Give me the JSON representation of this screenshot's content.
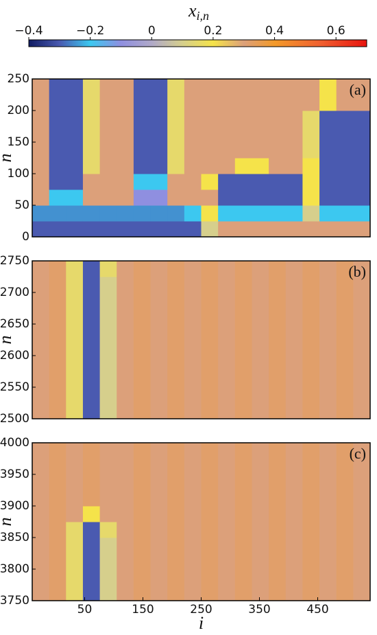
{
  "chart_data": [
    {
      "type": "heatmap",
      "label": "(a)",
      "ylabel": "n",
      "xlim": [
        -40,
        540
      ],
      "ylim": [
        0,
        250
      ],
      "yticks": [
        0,
        50,
        100,
        150,
        200,
        250
      ],
      "z": [
        [
          -0.3,
          -0.3,
          -0.3,
          -0.3,
          -0.3,
          -0.3,
          -0.3,
          -0.3,
          -0.3,
          -0.3,
          0.1,
          0.3,
          0.3,
          0.3,
          0.3,
          0.3,
          0.3,
          0.3,
          0.3,
          0.3
        ],
        [
          -0.25,
          -0.25,
          -0.25,
          -0.25,
          -0.25,
          -0.25,
          -0.25,
          -0.25,
          -0.25,
          -0.2,
          0.2,
          -0.2,
          -0.2,
          -0.2,
          -0.2,
          -0.2,
          0.1,
          -0.2,
          -0.2,
          -0.2
        ],
        [
          0.3,
          -0.2,
          -0.2,
          0.3,
          0.3,
          0.3,
          -0.1,
          -0.1,
          0.3,
          0.3,
          0.3,
          -0.3,
          -0.3,
          -0.3,
          -0.3,
          -0.3,
          0.2,
          -0.3,
          -0.3,
          -0.3
        ],
        [
          0.3,
          -0.3,
          -0.3,
          0.3,
          0.3,
          0.3,
          -0.2,
          -0.2,
          0.3,
          0.3,
          0.2,
          -0.3,
          -0.3,
          -0.3,
          -0.3,
          -0.3,
          0.2,
          -0.3,
          -0.3,
          -0.3
        ],
        [
          0.3,
          -0.3,
          -0.3,
          0.15,
          0.3,
          0.3,
          -0.3,
          -0.3,
          0.15,
          0.3,
          0.3,
          0.3,
          0.2,
          0.2,
          0.3,
          0.3,
          0.2,
          -0.3,
          -0.3,
          -0.3
        ],
        [
          0.3,
          -0.3,
          -0.3,
          0.15,
          0.3,
          0.3,
          -0.3,
          -0.3,
          0.15,
          0.3,
          0.3,
          0.3,
          0.3,
          0.3,
          0.3,
          0.3,
          0.15,
          -0.3,
          -0.3,
          -0.3
        ],
        [
          0.3,
          -0.3,
          -0.3,
          0.15,
          0.3,
          0.3,
          -0.3,
          -0.3,
          0.15,
          0.3,
          0.3,
          0.3,
          0.3,
          0.3,
          0.3,
          0.3,
          0.15,
          -0.3,
          -0.3,
          -0.3
        ],
        [
          0.3,
          -0.3,
          -0.3,
          0.15,
          0.3,
          0.3,
          -0.3,
          -0.3,
          0.15,
          0.3,
          0.3,
          0.3,
          0.3,
          0.3,
          0.3,
          0.3,
          0.15,
          -0.3,
          -0.3,
          -0.3
        ],
        [
          0.3,
          -0.3,
          -0.3,
          0.15,
          0.3,
          0.3,
          -0.3,
          -0.3,
          0.15,
          0.3,
          0.3,
          0.3,
          0.3,
          0.3,
          0.3,
          0.3,
          0.3,
          0.2,
          0.3,
          0.3
        ],
        [
          0.3,
          -0.3,
          -0.3,
          0.15,
          0.3,
          0.3,
          -0.3,
          -0.3,
          0.15,
          0.3,
          0.3,
          0.3,
          0.3,
          0.3,
          0.3,
          0.3,
          0.3,
          0.2,
          0.3,
          0.3
        ]
      ]
    },
    {
      "type": "heatmap",
      "label": "(b)",
      "ylabel": "n",
      "xlim": [
        -40,
        540
      ],
      "ylim": [
        2500,
        2750
      ],
      "yticks": [
        2500,
        2550,
        2600,
        2650,
        2700,
        2750
      ],
      "z": [
        [
          0.3,
          0.32,
          0.15,
          -0.3,
          0.1,
          0.3,
          0.32,
          0.3,
          0.32,
          0.3,
          0.32,
          0.3,
          0.32,
          0.3,
          0.32,
          0.3,
          0.32,
          0.3,
          0.32,
          0.3
        ],
        [
          0.3,
          0.32,
          0.15,
          -0.3,
          0.1,
          0.3,
          0.32,
          0.3,
          0.32,
          0.3,
          0.32,
          0.3,
          0.32,
          0.3,
          0.32,
          0.3,
          0.32,
          0.3,
          0.32,
          0.3
        ],
        [
          0.3,
          0.32,
          0.15,
          -0.3,
          0.1,
          0.3,
          0.32,
          0.3,
          0.32,
          0.3,
          0.32,
          0.3,
          0.32,
          0.3,
          0.32,
          0.3,
          0.32,
          0.3,
          0.32,
          0.3
        ],
        [
          0.3,
          0.32,
          0.15,
          -0.3,
          0.1,
          0.3,
          0.32,
          0.3,
          0.32,
          0.3,
          0.32,
          0.3,
          0.32,
          0.3,
          0.32,
          0.3,
          0.32,
          0.3,
          0.32,
          0.3
        ],
        [
          0.3,
          0.32,
          0.15,
          -0.3,
          0.1,
          0.3,
          0.32,
          0.3,
          0.32,
          0.3,
          0.32,
          0.3,
          0.32,
          0.3,
          0.32,
          0.3,
          0.32,
          0.3,
          0.32,
          0.3
        ],
        [
          0.3,
          0.32,
          0.15,
          -0.3,
          0.1,
          0.3,
          0.32,
          0.3,
          0.32,
          0.3,
          0.32,
          0.3,
          0.32,
          0.3,
          0.32,
          0.3,
          0.32,
          0.3,
          0.32,
          0.3
        ],
        [
          0.3,
          0.32,
          0.15,
          -0.3,
          0.1,
          0.3,
          0.32,
          0.3,
          0.32,
          0.3,
          0.32,
          0.3,
          0.32,
          0.3,
          0.32,
          0.3,
          0.32,
          0.3,
          0.32,
          0.3
        ],
        [
          0.3,
          0.32,
          0.15,
          -0.3,
          0.1,
          0.3,
          0.32,
          0.3,
          0.32,
          0.3,
          0.32,
          0.3,
          0.32,
          0.3,
          0.32,
          0.3,
          0.32,
          0.3,
          0.32,
          0.3
        ],
        [
          0.3,
          0.32,
          0.15,
          -0.3,
          0.1,
          0.3,
          0.32,
          0.3,
          0.32,
          0.3,
          0.32,
          0.3,
          0.32,
          0.3,
          0.32,
          0.3,
          0.32,
          0.3,
          0.32,
          0.3
        ],
        [
          0.3,
          0.32,
          0.15,
          -0.3,
          0.15,
          0.3,
          0.32,
          0.3,
          0.32,
          0.3,
          0.32,
          0.3,
          0.32,
          0.3,
          0.32,
          0.3,
          0.32,
          0.3,
          0.32,
          0.3
        ]
      ]
    },
    {
      "type": "heatmap",
      "label": "(c)",
      "ylabel": "n",
      "xlabel": "i",
      "xlim": [
        -40,
        540
      ],
      "xticks": [
        50,
        150,
        250,
        350,
        450
      ],
      "ylim": [
        3750,
        4000
      ],
      "yticks": [
        3750,
        3800,
        3850,
        3900,
        3950,
        4000
      ],
      "z": [
        [
          0.3,
          0.32,
          0.15,
          -0.3,
          0.1,
          0.3,
          0.32,
          0.3,
          0.32,
          0.3,
          0.32,
          0.3,
          0.32,
          0.3,
          0.32,
          0.3,
          0.32,
          0.3,
          0.32,
          0.3
        ],
        [
          0.3,
          0.32,
          0.15,
          -0.3,
          0.1,
          0.3,
          0.32,
          0.3,
          0.32,
          0.3,
          0.32,
          0.3,
          0.32,
          0.3,
          0.32,
          0.3,
          0.32,
          0.3,
          0.32,
          0.3
        ],
        [
          0.3,
          0.32,
          0.15,
          -0.3,
          0.1,
          0.3,
          0.32,
          0.3,
          0.32,
          0.3,
          0.32,
          0.3,
          0.32,
          0.3,
          0.32,
          0.3,
          0.32,
          0.3,
          0.32,
          0.3
        ],
        [
          0.3,
          0.32,
          0.15,
          -0.3,
          0.1,
          0.3,
          0.32,
          0.3,
          0.32,
          0.3,
          0.32,
          0.3,
          0.32,
          0.3,
          0.32,
          0.3,
          0.32,
          0.3,
          0.32,
          0.3
        ],
        [
          0.3,
          0.32,
          0.15,
          -0.3,
          0.15,
          0.3,
          0.32,
          0.3,
          0.32,
          0.3,
          0.32,
          0.3,
          0.32,
          0.3,
          0.32,
          0.3,
          0.32,
          0.3,
          0.32,
          0.3
        ],
        [
          0.3,
          0.32,
          0.3,
          0.2,
          0.3,
          0.3,
          0.32,
          0.3,
          0.32,
          0.3,
          0.32,
          0.3,
          0.32,
          0.3,
          0.32,
          0.3,
          0.32,
          0.3,
          0.32,
          0.3
        ],
        [
          0.3,
          0.32,
          0.3,
          0.32,
          0.3,
          0.3,
          0.32,
          0.3,
          0.32,
          0.3,
          0.32,
          0.3,
          0.32,
          0.3,
          0.32,
          0.3,
          0.32,
          0.3,
          0.32,
          0.3
        ],
        [
          0.3,
          0.32,
          0.3,
          0.32,
          0.3,
          0.3,
          0.32,
          0.3,
          0.32,
          0.3,
          0.32,
          0.3,
          0.32,
          0.3,
          0.32,
          0.3,
          0.32,
          0.3,
          0.32,
          0.3
        ],
        [
          0.3,
          0.32,
          0.3,
          0.32,
          0.3,
          0.3,
          0.32,
          0.3,
          0.32,
          0.3,
          0.32,
          0.3,
          0.32,
          0.3,
          0.32,
          0.3,
          0.32,
          0.3,
          0.32,
          0.3
        ],
        [
          0.3,
          0.32,
          0.3,
          0.32,
          0.3,
          0.3,
          0.32,
          0.3,
          0.32,
          0.3,
          0.32,
          0.3,
          0.32,
          0.3,
          0.32,
          0.3,
          0.32,
          0.3,
          0.32,
          0.3
        ]
      ]
    },
    {
      "type": "colorbar",
      "label": "x",
      "label_sub": "i,n",
      "clim": [
        -0.4,
        0.7
      ],
      "ticks": [
        {
          "value": -0.4,
          "label": "−0.4"
        },
        {
          "value": -0.2,
          "label": "−0.2"
        },
        0,
        0.2,
        0.4,
        0.6
      ],
      "colormap": [
        {
          "value": -0.4,
          "color": "#101c63"
        },
        {
          "value": -0.3,
          "color": "#4a5ab0"
        },
        {
          "value": -0.2,
          "color": "#3cc8f0"
        },
        {
          "value": -0.1,
          "color": "#8f8fe0"
        },
        {
          "value": 0,
          "color": "#b0a9c8"
        },
        {
          "value": 0.1,
          "color": "#d6cf8c"
        },
        {
          "value": 0.2,
          "color": "#f5e34a"
        },
        {
          "value": 0.3,
          "color": "#dca07a"
        },
        {
          "value": 0.4,
          "color": "#f39a2a"
        },
        {
          "value": 0.55,
          "color": "#f06030"
        },
        {
          "value": 0.7,
          "color": "#e8140f"
        }
      ]
    }
  ]
}
